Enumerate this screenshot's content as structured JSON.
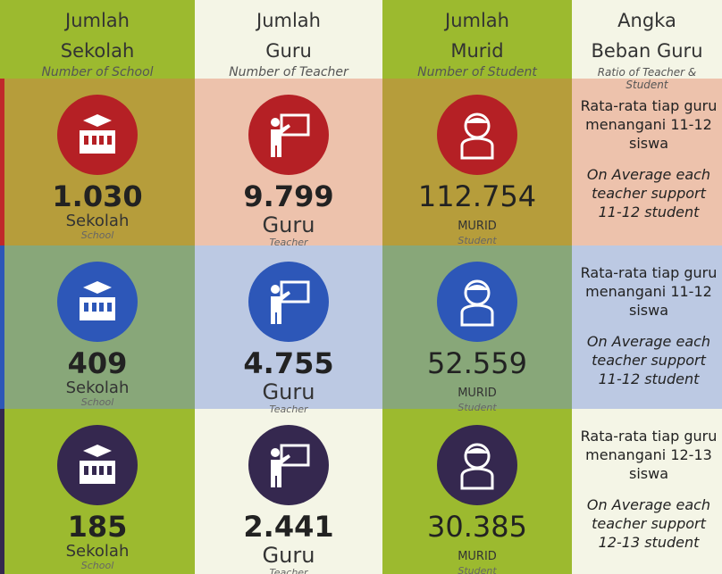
{
  "header": {
    "columns": [
      {
        "title": [
          "Jumlah",
          "Sekolah"
        ],
        "subtitle": "Number of School"
      },
      {
        "title": [
          "Jumlah",
          "Guru"
        ],
        "subtitle": "Number of Teacher"
      },
      {
        "title": [
          "Jumlah",
          "Murid"
        ],
        "subtitle": "Number of Student"
      },
      {
        "title": [
          "Angka",
          "Beban Guru"
        ],
        "subtitle": "Ratio of Teacher & Student"
      }
    ]
  },
  "rows": [
    {
      "school": "1.030",
      "school_label": "Sekolah",
      "school_sub": "School",
      "teacher": "9.799",
      "teacher_label": "Guru",
      "teacher_sub": "Teacher",
      "student": "112.754",
      "student_label": "MURID",
      "student_sub": "Student",
      "ratio_id": "Rata-rata tiap guru menangani 11-12 siswa",
      "ratio_en": "On Average each teacher support 11-12 student"
    },
    {
      "school": "409",
      "school_label": "Sekolah",
      "school_sub": "School",
      "teacher": "4.755",
      "teacher_label": "Guru",
      "teacher_sub": "Teacher",
      "student": "52.559",
      "student_label": "MURID",
      "student_sub": "Student",
      "ratio_id": "Rata-rata tiap guru menangani 11-12 siswa",
      "ratio_en": "On Average each teacher support 11-12 student"
    },
    {
      "school": "185",
      "school_label": "Sekolah",
      "school_sub": "School",
      "teacher": "2.441",
      "teacher_label": "Guru",
      "teacher_sub": "Teacher",
      "student": "30.385",
      "student_label": "MURID",
      "student_sub": "Student",
      "ratio_id": "Rata-rata tiap guru menangani 12-13 siswa",
      "ratio_en": "On Average each teacher support 12-13 student"
    }
  ]
}
